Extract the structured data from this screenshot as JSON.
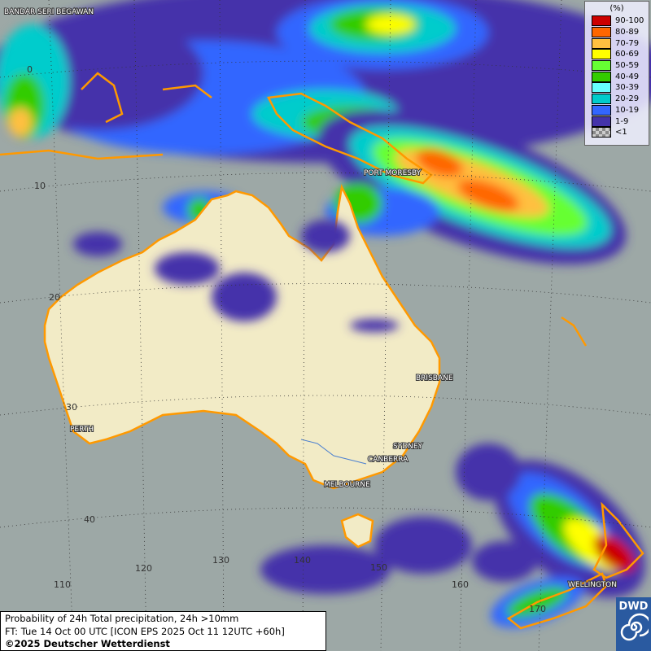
{
  "legend": {
    "unit": "(%)",
    "items": [
      {
        "label": "90-100",
        "color": "#cc0000"
      },
      {
        "label": "80-89",
        "color": "#ff6600"
      },
      {
        "label": "70-79",
        "color": "#ffc040"
      },
      {
        "label": "60-69",
        "color": "#ffff00"
      },
      {
        "label": "50-59",
        "color": "#66ff33"
      },
      {
        "label": "40-49",
        "color": "#33cc00"
      },
      {
        "label": "30-39",
        "color": "#66ffff"
      },
      {
        "label": "20-29",
        "color": "#00cccc"
      },
      {
        "label": "10-19",
        "color": "#3366ff"
      },
      {
        "label": "1-9",
        "color": "#4433aa"
      },
      {
        "label": "<1",
        "color": "checker"
      }
    ]
  },
  "cities": [
    "BANDAR SERI BEGAWAN",
    "PORT MORESBY",
    "BRISBANE",
    "PERTH",
    "SYDNEY",
    "CANBERRA",
    "MELBOURNE",
    "WELLINGTON"
  ],
  "lat_labels": [
    "0",
    "10",
    "20",
    "30",
    "40"
  ],
  "lon_labels": [
    "110",
    "120",
    "130",
    "140",
    "150",
    "160",
    "170"
  ],
  "footer": {
    "line1": "Probability of 24h Total precipitation, 24h >10mm",
    "line2": "FT: Tue 14 Oct 00 UTC [ICON EPS 2025 Oct 11 12UTC +60h]",
    "copyright": "©2025 Deutscher Wetterdienst"
  },
  "logo": {
    "text": "DWD"
  },
  "colors": {
    "ocean": "#9da8a6",
    "land": "#f2ebc6",
    "coast": "#ff9900"
  }
}
